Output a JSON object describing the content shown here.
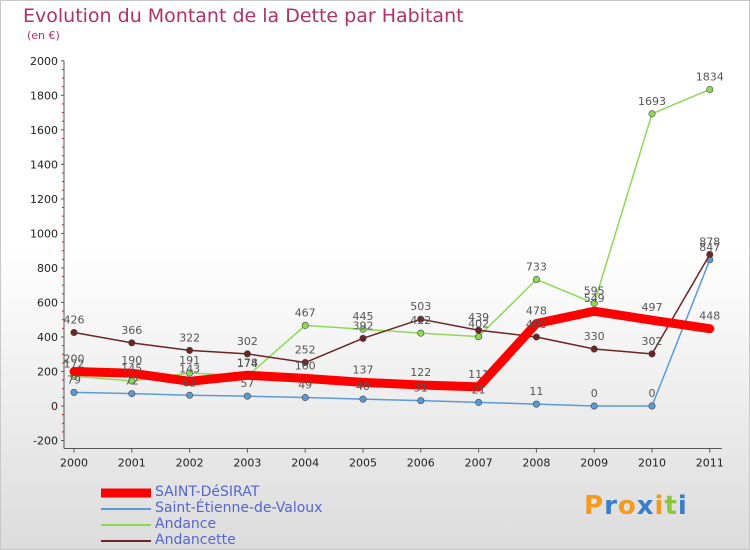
{
  "header": {
    "title": "Evolution du Montant de la Dette par Habitant",
    "subtitle": "(en €)"
  },
  "logo": {
    "text": "Proxiti",
    "letter_colors": [
      "#f39a1f",
      "#3a7ecb",
      "#f39a1f",
      "#3a7ecb",
      "#f39a1f",
      "#8cc63f",
      "#3a7ecb"
    ]
  },
  "chart_data": {
    "type": "line",
    "x": [
      "2000",
      "2001",
      "2002",
      "2003",
      "2004",
      "2005",
      "2006",
      "2007",
      "2008",
      "2009",
      "2010",
      "2011"
    ],
    "ylim": [
      -200,
      2000
    ],
    "yticks": [
      "-200",
      "0",
      "200",
      "400",
      "600",
      "800",
      "1000",
      "1200",
      "1400",
      "1600",
      "1800",
      "2000"
    ],
    "grid": false,
    "legend_position": "bottom-left",
    "series": [
      {
        "name": "SAINT-DéSIRAT",
        "color": "#ff0000",
        "values": [
          200,
          190,
          143,
          178,
          160,
          137,
          122,
          111,
          478,
          549,
          497,
          448
        ],
        "labels": [
          "200",
          "190",
          "143",
          "178",
          "160",
          "137",
          "122",
          "111",
          "478",
          "549",
          "497",
          "448"
        ]
      },
      {
        "name": "Saint-Étienne-de-Valoux",
        "color": "#5b9bd5",
        "values": [
          79,
          72,
          62,
          57,
          49,
          40,
          31,
          21,
          11,
          0,
          0,
          847
        ],
        "labels": [
          "79",
          "72",
          "62",
          "57",
          "49",
          "40",
          "31",
          "21",
          "11",
          "0",
          "0",
          "847"
        ]
      },
      {
        "name": "Andance",
        "color": "#8ed858",
        "values": [
          172,
          145,
          191,
          174,
          467,
          445,
          422,
          402,
          733,
          595,
          1693,
          1834
        ],
        "labels": [
          "172",
          "145",
          "191",
          "174",
          "467",
          "445",
          "422",
          "402",
          "733",
          "595",
          "1693",
          "1834"
        ]
      },
      {
        "name": "Andancette",
        "color": "#6b2424",
        "values": [
          426,
          366,
          322,
          302,
          252,
          392,
          503,
          439,
          400,
          330,
          302,
          878
        ],
        "labels": [
          "426",
          "366",
          "322",
          "302",
          "252",
          "392",
          "503",
          "439",
          "400",
          "330",
          "302",
          "878"
        ]
      }
    ]
  }
}
